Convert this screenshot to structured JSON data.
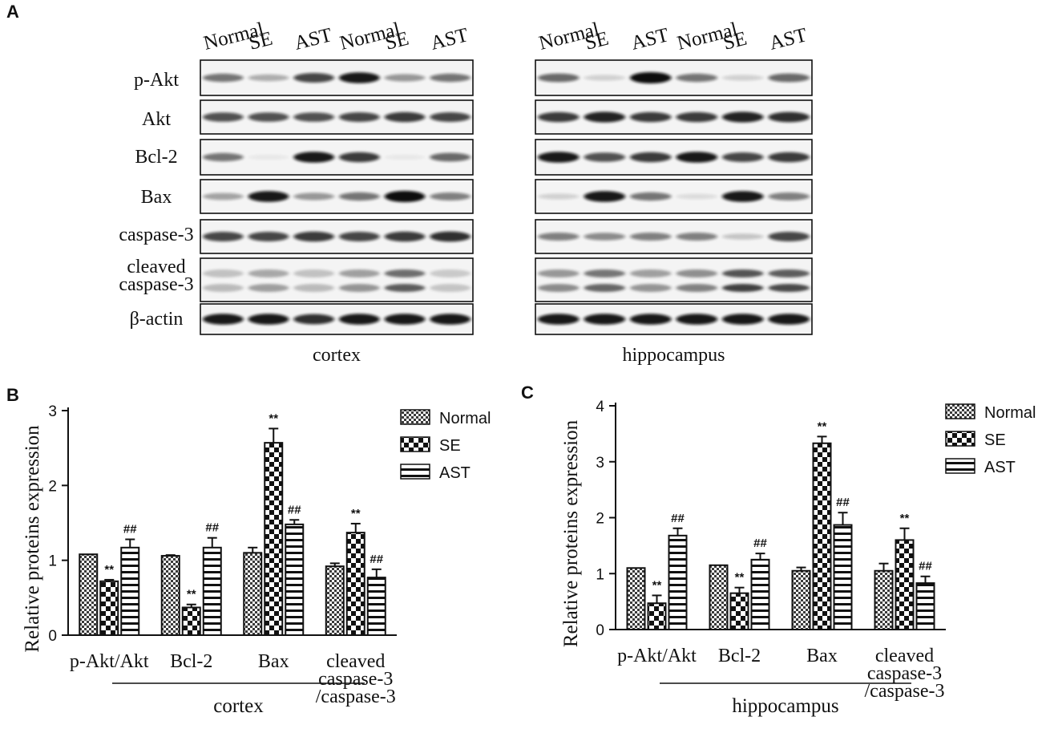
{
  "panel_a": {
    "letter": "A",
    "lane_labels": [
      "Normal",
      "SE",
      "AST",
      "Normal",
      "SE",
      "AST"
    ],
    "row_labels": [
      "p-Akt",
      "Akt",
      "Bcl-2",
      "Bax",
      "caspase-3",
      "cleaved",
      "caspase-3",
      "β-actin"
    ],
    "blots": [
      {
        "region": "cortex",
        "rows": [
          {
            "bands": [
              0.55,
              0.3,
              0.75,
              0.95,
              0.4,
              0.55
            ]
          },
          {
            "bands": [
              0.7,
              0.7,
              0.7,
              0.75,
              0.8,
              0.75
            ]
          },
          {
            "bands": [
              0.55,
              0.05,
              0.95,
              0.8,
              0.05,
              0.6
            ]
          },
          {
            "bands": [
              0.35,
              0.95,
              0.4,
              0.55,
              1.0,
              0.5
            ]
          },
          {
            "bands": [
              0.75,
              0.75,
              0.8,
              0.75,
              0.8,
              0.85
            ]
          },
          {
            "bands": [
              0.3,
              0.45,
              0.3,
              0.5,
              0.8,
              0.25
            ]
          },
          {
            "bands": [
              0.95,
              0.95,
              0.85,
              0.95,
              0.95,
              0.95
            ]
          }
        ]
      },
      {
        "region": "hippocampus",
        "rows": [
          {
            "bands": [
              0.6,
              0.15,
              1.0,
              0.55,
              0.15,
              0.6
            ]
          },
          {
            "bands": [
              0.8,
              0.9,
              0.8,
              0.8,
              0.9,
              0.85
            ]
          },
          {
            "bands": [
              0.95,
              0.7,
              0.8,
              0.95,
              0.75,
              0.8
            ]
          },
          {
            "bands": [
              0.15,
              0.95,
              0.55,
              0.1,
              0.95,
              0.5
            ]
          },
          {
            "bands": [
              0.5,
              0.45,
              0.5,
              0.5,
              0.2,
              0.75
            ]
          },
          {
            "bands": [
              0.55,
              0.75,
              0.5,
              0.6,
              0.95,
              0.9
            ]
          },
          {
            "bands": [
              0.95,
              0.95,
              0.95,
              0.95,
              0.95,
              0.95
            ]
          }
        ]
      }
    ]
  },
  "chart_data": [
    {
      "type": "bar",
      "panel_letter": "B",
      "ylabel": "Relative proteins expression",
      "xlabel": "cortex",
      "ylim": [
        0,
        3
      ],
      "yticks": [
        0,
        1,
        2,
        3
      ],
      "categories": [
        [
          "p-Akt/Akt"
        ],
        [
          "Bcl-2"
        ],
        [
          "Bax"
        ],
        [
          "cleaved",
          "caspase-3",
          "/caspase-3"
        ]
      ],
      "series": [
        {
          "name": "Normal",
          "pattern": "checker",
          "values": [
            1.08,
            1.06,
            1.1,
            0.92
          ],
          "errors": [
            0.0,
            0.01,
            0.07,
            0.04
          ]
        },
        {
          "name": "SE",
          "pattern": "large-checker",
          "values": [
            0.72,
            0.37,
            2.57,
            1.37
          ],
          "errors": [
            0.02,
            0.04,
            0.19,
            0.12
          ],
          "marks": [
            "**",
            "**",
            "**",
            "**"
          ]
        },
        {
          "name": "AST",
          "pattern": "stripes",
          "values": [
            1.17,
            1.17,
            1.48,
            0.77
          ],
          "errors": [
            0.11,
            0.13,
            0.06,
            0.11
          ],
          "marks": [
            "##",
            "##",
            "##",
            "##"
          ]
        }
      ],
      "legend": "top-right",
      "grid": false
    },
    {
      "type": "bar",
      "panel_letter": "C",
      "ylabel": "Relative proteins expression",
      "xlabel": "hippocampus",
      "ylim": [
        0,
        4
      ],
      "yticks": [
        0,
        1,
        2,
        3,
        4
      ],
      "categories": [
        [
          "p-Akt/Akt"
        ],
        [
          "Bcl-2"
        ],
        [
          "Bax"
        ],
        [
          "cleaved",
          "caspase-3",
          "/caspase-3"
        ]
      ],
      "series": [
        {
          "name": "Normal",
          "pattern": "checker",
          "values": [
            1.1,
            1.15,
            1.05,
            1.05
          ],
          "errors": [
            0.0,
            0.0,
            0.06,
            0.13
          ]
        },
        {
          "name": "SE",
          "pattern": "large-checker",
          "values": [
            0.47,
            0.65,
            3.33,
            1.6
          ],
          "errors": [
            0.14,
            0.1,
            0.12,
            0.21
          ],
          "marks": [
            "**",
            "**",
            "**",
            "**"
          ]
        },
        {
          "name": "AST",
          "pattern": "stripes",
          "values": [
            1.68,
            1.25,
            1.87,
            0.83
          ],
          "errors": [
            0.13,
            0.11,
            0.22,
            0.12
          ],
          "marks": [
            "##",
            "##",
            "##",
            "##"
          ]
        }
      ],
      "legend": "top-right",
      "grid": false
    }
  ]
}
